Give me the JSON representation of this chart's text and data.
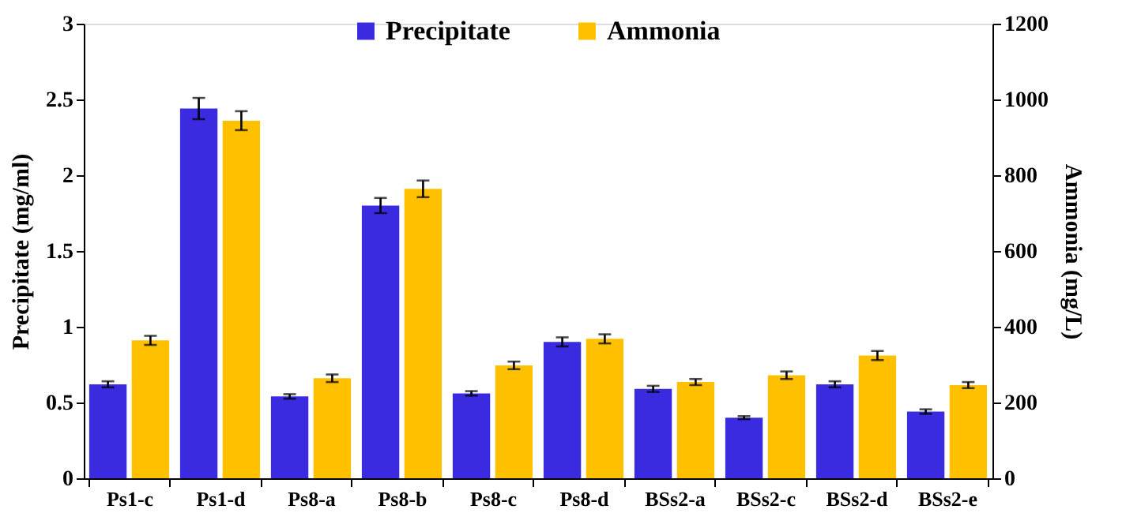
{
  "chart_data": {
    "type": "bar",
    "ylabel": "Precipitate (mg/ml)",
    "y2label": "Ammonia (mg/L)",
    "categories": [
      "Ps1-c",
      "Ps1-d",
      "Ps8-a",
      "Ps8-b",
      "Ps8-c",
      "Ps8-d",
      "BSs2-a",
      "BSs2-c",
      "BSs2-d",
      "BSs2-e"
    ],
    "series": [
      {
        "name": "Precipitate",
        "color": "#3a2be0",
        "values": [
          0.62,
          2.44,
          0.54,
          1.8,
          0.56,
          0.9,
          0.59,
          0.4,
          0.62,
          0.44
        ],
        "errors": [
          0.02,
          0.07,
          0.015,
          0.05,
          0.015,
          0.03,
          0.02,
          0.01,
          0.02,
          0.015
        ]
      },
      {
        "name": "Ammonia",
        "color": "#ffc000",
        "axis": "y2",
        "values": [
          364,
          944,
          264,
          764,
          298,
          368,
          254,
          272,
          324,
          246
        ],
        "errors": [
          12,
          25,
          10,
          22,
          10,
          12,
          8,
          10,
          12,
          8
        ]
      }
    ],
    "ylim": [
      0,
      3
    ],
    "yticks": [
      0,
      0.5,
      1,
      1.5,
      2,
      2.5,
      3
    ],
    "y2lim": [
      0,
      1200
    ],
    "y2ticks": [
      0,
      200,
      400,
      600,
      800,
      1000,
      1200
    ],
    "grid": false,
    "legend": "top"
  }
}
